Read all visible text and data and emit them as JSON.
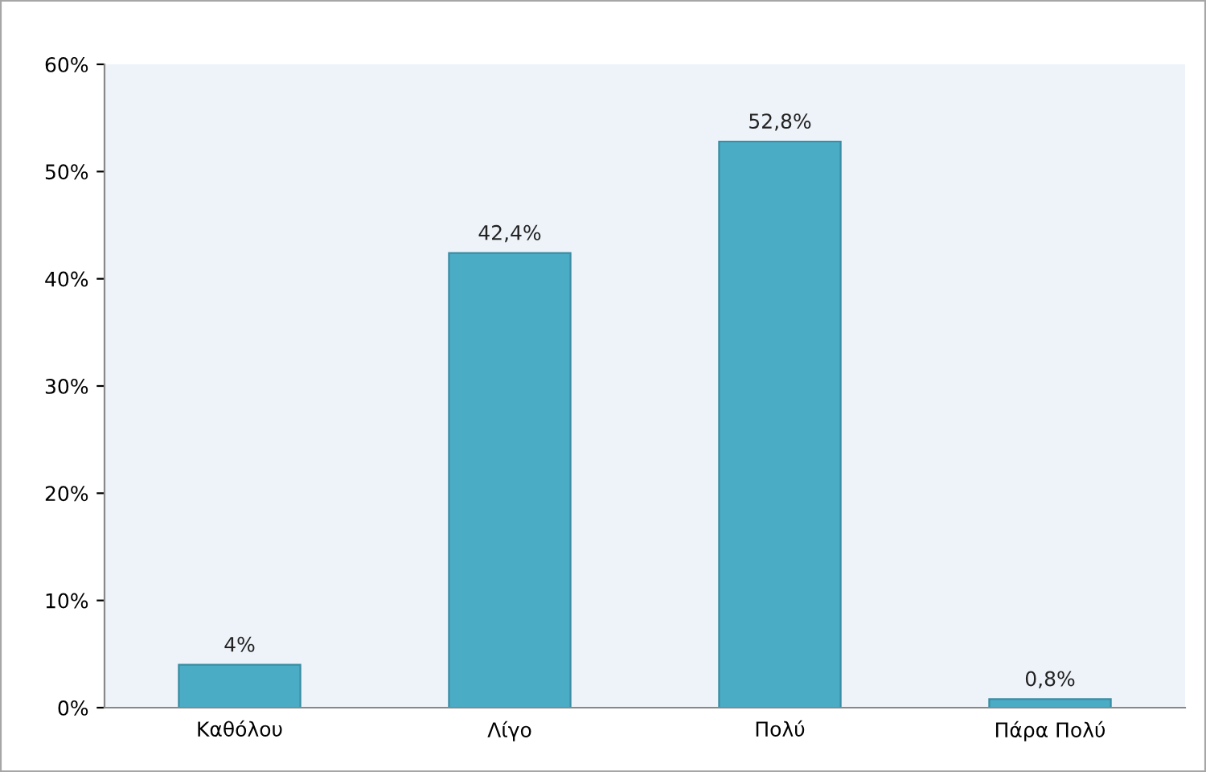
{
  "chart_data": {
    "type": "bar",
    "categories": [
      "Καθόλου",
      "Λίγο",
      "Πολύ",
      "Πάρα Πολύ"
    ],
    "values": [
      4,
      42.4,
      52.8,
      0.8
    ],
    "value_labels": [
      "4%",
      "42,4%",
      "52,8%",
      "0,8%"
    ],
    "color": "#4bacc6",
    "ylim": [
      0,
      60
    ],
    "yticks": [
      {
        "value": 0,
        "label": "0%"
      },
      {
        "value": 10,
        "label": "10%"
      },
      {
        "value": 20,
        "label": "20%"
      },
      {
        "value": 30,
        "label": "30%"
      },
      {
        "value": 40,
        "label": "40%"
      },
      {
        "value": 50,
        "label": "50%"
      },
      {
        "value": 60,
        "label": "60%"
      }
    ],
    "grid": false
  }
}
